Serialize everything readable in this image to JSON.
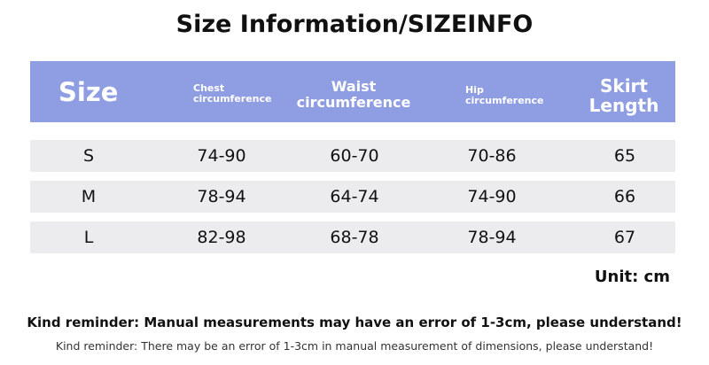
{
  "header": {
    "title": "Size Information/SIZEINFO"
  },
  "table": {
    "columns": [
      "Size",
      "Chest circumference",
      "Waist circumference",
      "Hip circumference",
      "Skirt Length"
    ],
    "rows": [
      [
        "S",
        "74-90",
        "60-70",
        "70-86",
        "65"
      ],
      [
        "M",
        "78-94",
        "64-74",
        "74-90",
        "66"
      ],
      [
        "L",
        "82-98",
        "68-78",
        "78-94",
        "67"
      ]
    ]
  },
  "unit": "Unit: cm",
  "notes": [
    "Kind reminder: Manual measurements may have an error of 1-3cm, please understand!",
    "Kind reminder: There may be an error of 1-3cm in manual measurement of dimensions, please understand!"
  ]
}
